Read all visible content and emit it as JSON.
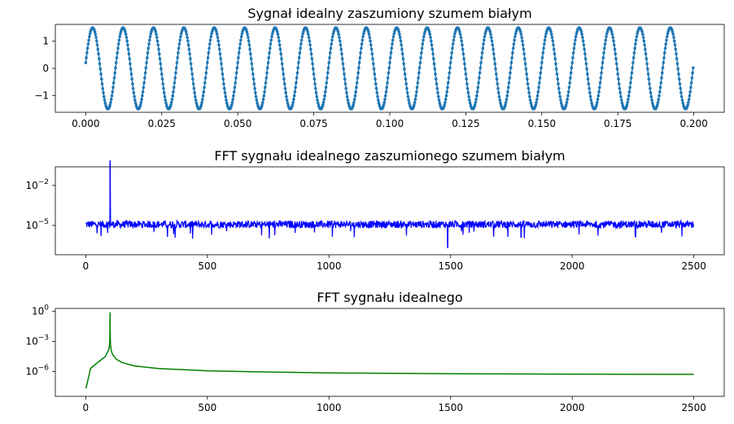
{
  "chart_data": [
    {
      "type": "scatter",
      "title": "Sygnał idealny zaszumiony szumem białym",
      "x_ticks": [
        "0.000",
        "0.025",
        "0.050",
        "0.075",
        "0.100",
        "0.125",
        "0.150",
        "0.175",
        "0.200"
      ],
      "y_ticks": [
        "1",
        "0",
        "−1"
      ],
      "xlim": [
        -0.01,
        0.21
      ],
      "ylim": [
        -1.62,
        1.62
      ],
      "signal": {
        "frequency": 100,
        "amplitude": 1.5,
        "phase_deg": 8,
        "sample_rate": 5000,
        "x_start": 0,
        "x_end": 0.1998
      },
      "color": "#1f77b4",
      "grid": false
    },
    {
      "type": "line",
      "title": "FFT sygnału idealnego zaszumionego szumem białym",
      "x_ticks": [
        "0",
        "500",
        "1000",
        "1500",
        "2000",
        "2500"
      ],
      "y_ticks": [
        {
          "base": "10",
          "exp": "−2"
        },
        {
          "base": "10",
          "exp": "−5"
        }
      ],
      "xlim": [
        -125,
        2625
      ],
      "ylim_log10": [
        -7.2,
        -0.6
      ],
      "y_scale": "log",
      "peak": {
        "x": 100,
        "y": 0.75
      },
      "noise_floor": 1.2e-05,
      "dips": [
        {
          "x": 1488,
          "y": 2e-07
        },
        {
          "x": 1790,
          "y": 1.2e-06
        },
        {
          "x": 2260,
          "y": 1.3e-06
        }
      ],
      "color": "#0000ff",
      "grid": false
    },
    {
      "type": "line",
      "title": "FFT sygnału idealnego",
      "x_ticks": [
        "0",
        "500",
        "1000",
        "1500",
        "2000",
        "2500"
      ],
      "y_ticks": [
        {
          "base": "10",
          "exp": "0"
        },
        {
          "base": "10",
          "exp": "−3"
        },
        {
          "base": "10",
          "exp": "−6"
        }
      ],
      "xlim": [
        -125,
        2625
      ],
      "ylim_log10": [
        -8.5,
        0.3
      ],
      "y_scale": "log",
      "x": [
        1,
        20,
        50,
        80,
        95,
        98,
        99,
        100,
        101,
        102,
        105,
        110,
        125,
        150,
        200,
        300,
        500,
        700,
        1000,
        1500,
        2000,
        2500
      ],
      "y": [
        2e-08,
        2e-06,
        8e-06,
        3e-05,
        0.00015,
        0.0005,
        0.0015,
        0.75,
        0.0015,
        0.0004,
        0.00012,
        5e-05,
        1.7e-05,
        7.5e-06,
        3.5e-06,
        1.9e-06,
        1.15e-06,
        9e-07,
        7e-07,
        5.8e-07,
        5.2e-07,
        5e-07
      ],
      "color": "#008000",
      "grid": false
    }
  ]
}
